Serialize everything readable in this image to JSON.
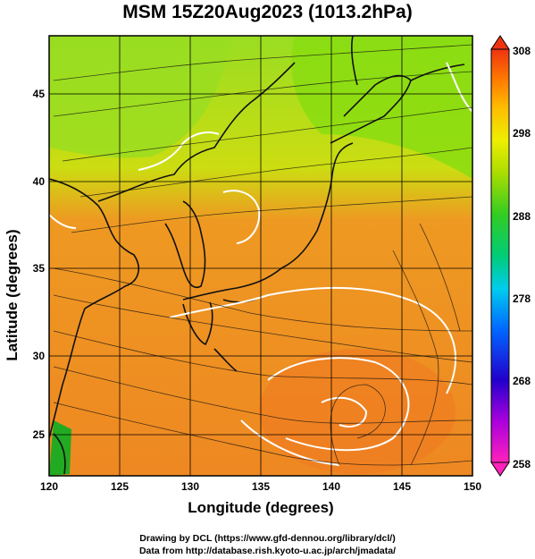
{
  "title": "MSM 15Z20Aug2023 (1013.2hPa)",
  "axes": {
    "xlabel": "Longitude (degrees)",
    "ylabel": "Latitude  (degrees)",
    "x_ticks": [
      "120",
      "125",
      "130",
      "135",
      "140",
      "145",
      "150"
    ],
    "y_ticks": [
      "25",
      "30",
      "35",
      "40",
      "45"
    ],
    "lon_range": [
      120,
      150
    ],
    "lat_range": [
      22.4,
      47.6
    ]
  },
  "colorbar": {
    "ticks": [
      "308",
      "298",
      "288",
      "278",
      "268",
      "258"
    ],
    "range": [
      258,
      308
    ],
    "colors": [
      "#ff0099",
      "#8800cc",
      "#0000cc",
      "#0055ff",
      "#00ccff",
      "#00cc88",
      "#22bb22",
      "#88dd00",
      "#ddee00",
      "#ffcc00",
      "#ff8800",
      "#ee2200"
    ]
  },
  "map": {
    "field": "surface temperature (K) with wind streamlines",
    "land_color": "#1a1a1a",
    "contour_color": "#ffffff"
  },
  "credits": {
    "line1": "Drawing by DCL (https://www.gfd-dennou.org/library/dcl/)",
    "line2": "Data from http://database.rish.kyoto-u.ac.jp/arch/jmadata/"
  }
}
